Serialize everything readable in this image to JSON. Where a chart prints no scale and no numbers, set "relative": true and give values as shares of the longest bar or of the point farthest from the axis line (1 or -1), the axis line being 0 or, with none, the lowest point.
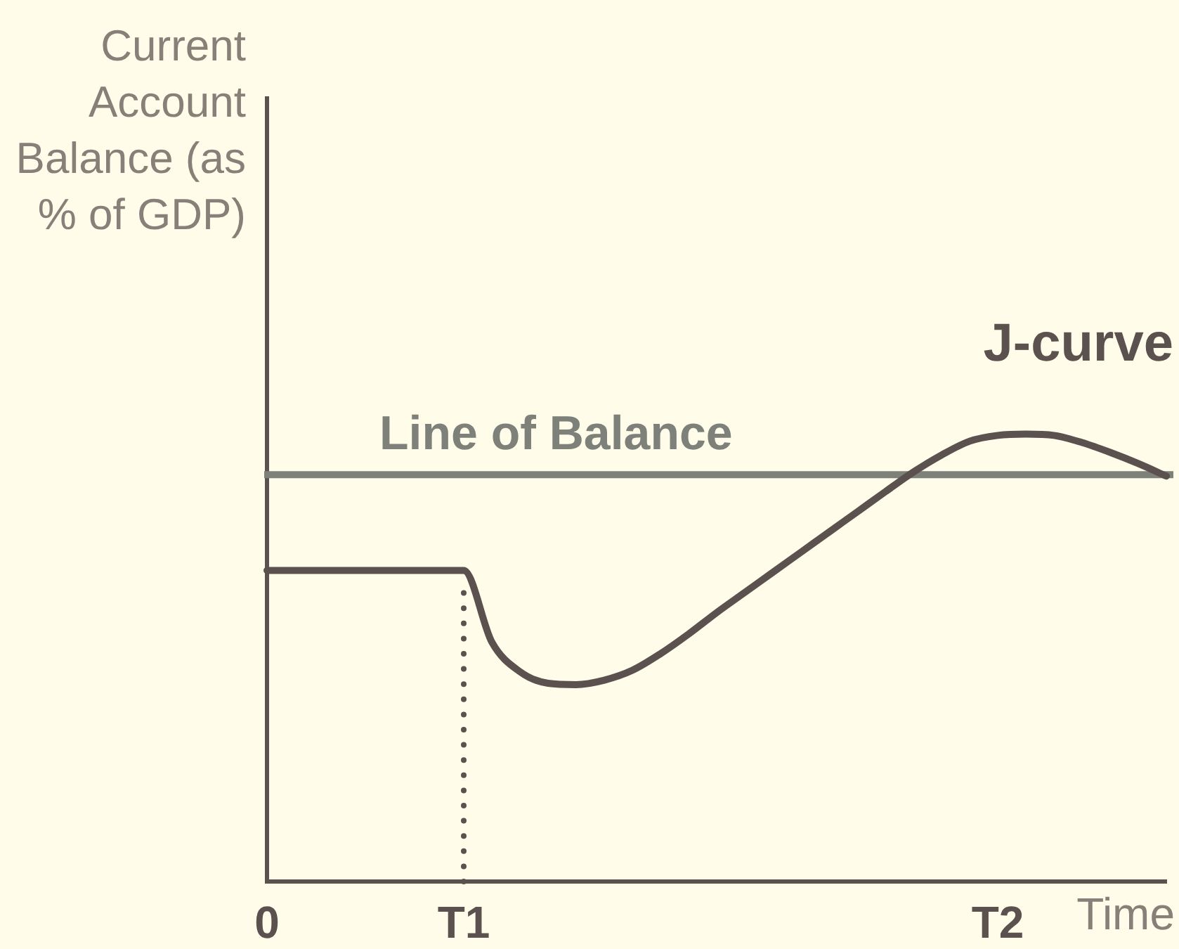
{
  "chart_data": {
    "type": "line",
    "xlabel": "Time",
    "ylabel": "Current Account Balance (as % of GDP)",
    "categories": [
      "0",
      null,
      null,
      null,
      null,
      null,
      null,
      "T1",
      null,
      null,
      null,
      null,
      null,
      null,
      null,
      null,
      null,
      null,
      null,
      null,
      null,
      null,
      null,
      null,
      null,
      null,
      "T2",
      null,
      null,
      null,
      null,
      null,
      null
    ],
    "series": [
      {
        "name": "J-curve",
        "color": "#5b514f",
        "values": [
          0.695,
          0.695,
          0.695,
          0.695,
          0.695,
          0.695,
          0.695,
          0.695,
          0.535,
          0.469,
          0.443,
          0.44,
          0.45,
          0.472,
          0.509,
          0.553,
          0.601,
          0.646,
          0.691,
          0.736,
          0.781,
          0.826,
          0.871,
          0.915,
          0.953,
          0.984,
          0.997,
          1.0,
          0.997,
          0.981,
          0.959,
          0.934,
          0.906
        ]
      }
    ],
    "relative": true,
    "ref_lines": [
      {
        "axis": "y",
        "value": 0.909,
        "label": "Line of Balance",
        "color": "#7d8179"
      },
      {
        "axis": "x",
        "value": "T1",
        "color": "#5b514f",
        "line_style": "dotted"
      }
    ],
    "legend": false,
    "grid": false,
    "marker": "none",
    "line_style": "solid"
  }
}
